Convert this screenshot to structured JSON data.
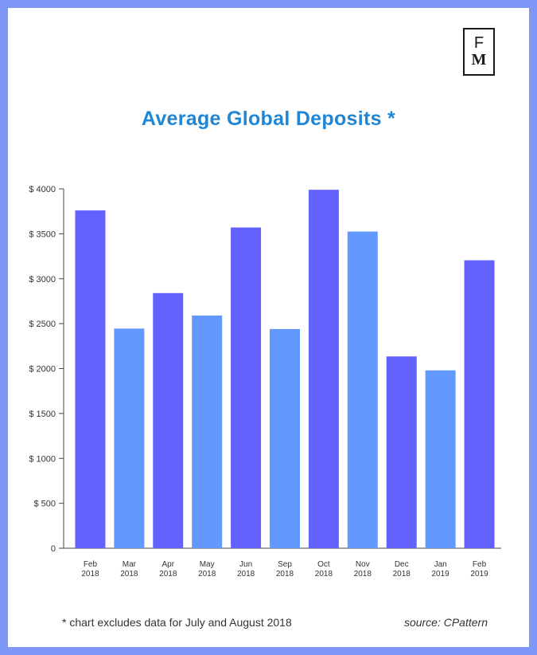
{
  "logo": {
    "line1": "F",
    "line2": "M"
  },
  "footnote": "* chart excludes data for July and August 2018",
  "source": "source: CPattern",
  "colors": {
    "frame": "#7f97f9",
    "title": "#1f86d6",
    "bar_dark": "#6462ff",
    "bar_light": "#6399ff",
    "axis": "#444444"
  },
  "chart_data": {
    "type": "bar",
    "title": "Average Global Deposits *",
    "xlabel": "",
    "ylabel": "",
    "categories": [
      [
        "Feb",
        "2018"
      ],
      [
        "Mar",
        "2018"
      ],
      [
        "Apr",
        "2018"
      ],
      [
        "May",
        "2018"
      ],
      [
        "Jun",
        "2018"
      ],
      [
        "Sep",
        "2018"
      ],
      [
        "Oct",
        "2018"
      ],
      [
        "Nov",
        "2018"
      ],
      [
        "Dec",
        "2018"
      ],
      [
        "Jan",
        "2019"
      ],
      [
        "Feb",
        "2019"
      ]
    ],
    "values": [
      3760,
      2445,
      2840,
      2590,
      3570,
      2440,
      3990,
      3525,
      2135,
      1980,
      3205
    ],
    "bar_colors": [
      "#6462ff",
      "#6399ff",
      "#6462ff",
      "#6399ff",
      "#6462ff",
      "#6399ff",
      "#6462ff",
      "#6399ff",
      "#6462ff",
      "#6399ff",
      "#6462ff"
    ],
    "ylim": [
      0,
      4000
    ],
    "y_ticks": [
      0,
      500,
      1000,
      1500,
      2000,
      2500,
      3000,
      3500,
      4000
    ],
    "y_tick_labels": [
      "0",
      "$ 500",
      "$ 1000",
      "$ 1500",
      "$ 2000",
      "$ 2500",
      "$ 3000",
      "$ 3500",
      "$ 4000"
    ],
    "grid": false,
    "legend": "none"
  }
}
